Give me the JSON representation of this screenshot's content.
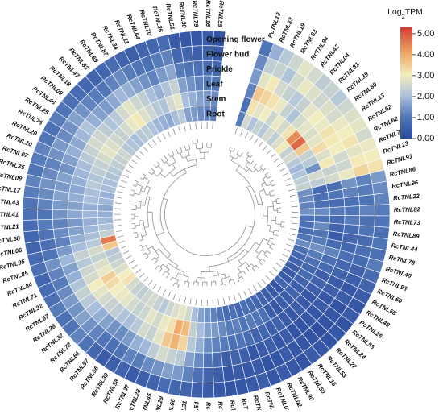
{
  "chart_data": {
    "type": "heatmap",
    "layout": "circular",
    "title": "",
    "tracks": [
      "Opening flower",
      "Flower bud",
      "Prickle",
      "Leaf",
      "Stem",
      "Root"
    ],
    "legend": {
      "title_prefix": "Log",
      "title_sub": "2",
      "title_suffix": "TPM",
      "ticks": [
        "5.00",
        "4.00",
        "3.00",
        "2.00",
        "1.00",
        "0.00"
      ],
      "range": [
        0,
        5.3
      ],
      "placement": "top-right",
      "colors": [
        "#2c4a9e",
        "#4f75b6",
        "#a9bfdc",
        "#f3eebe",
        "#eea35f",
        "#d13d34"
      ]
    },
    "genes": [
      "RcTNL12",
      "RcTNL33",
      "RcTNL19",
      "RcTNL63",
      "RcTNL94",
      "RcTNL42",
      "RcTNL04",
      "RcTNL81",
      "RcTNL39",
      "RcTNL80",
      "RcTNL13",
      "RcTNL52",
      "RcTNL62",
      "RcTNL74",
      "RcTNL23",
      "RcTNL91",
      "RcTNL86",
      "RcTNL96",
      "RcTNL22",
      "RcTNL82",
      "RcTNL73",
      "RcTNL89",
      "RcTNL44",
      "RcTNL78",
      "RcTNL40",
      "RcTNL93",
      "RcTNL60",
      "RcTNL65",
      "RcTNL48",
      "RcTNL26",
      "RcTNL55",
      "RcTNL24",
      "RcTNL27",
      "RcTNL53",
      "RcTNL15",
      "RcTNL50",
      "RcTNL90",
      "RcTNL02",
      "RcTNL01",
      "RcTNL77",
      "RcTNL14",
      "RcTNL75",
      "RcTNL05",
      "RcTNL49",
      "RcTNL03",
      "RcTNL54",
      "RcTNL31",
      "RcTNL66",
      "RcTNL29",
      "RcTNL45",
      "RcTNL28",
      "RcTNL37",
      "RcTNL58",
      "RcTNL30",
      "RcTNL56",
      "RcTNL57",
      "RcTNL61",
      "RcTNL72",
      "RcTNL32",
      "RcTNL38",
      "RcTNL67",
      "RcTNL92",
      "RcTNL71",
      "RcTNL84",
      "RcTNL85",
      "RcTNL95",
      "RcTNL06",
      "RcTNL68",
      "RcTNL21",
      "RcTNL41",
      "RcTNL43",
      "RcTNL17",
      "RcTNL08",
      "RcTNL35",
      "RcTNL07",
      "RcTNL10",
      "RcTNL20",
      "RcTNL76",
      "RcTNL25",
      "RcTNL46",
      "RcTNL09",
      "RcTNL18",
      "RcTNL47",
      "RcTNL83",
      "RcTNL69",
      "RcTNL87",
      "RcTNL34",
      "RcTNL11",
      "RcTNL64",
      "RcTNL70",
      "RcTNL36",
      "RcTNL51",
      "RcTNL30",
      "RcTNL79",
      "RcTNL16",
      "RcTNL59"
    ],
    "values": [
      [
        1.0,
        1.3,
        1.5,
        1.2,
        0.9,
        1.1
      ],
      [
        1.8,
        2.3,
        2.8,
        3.6,
        3.2,
        2.6
      ],
      [
        2.2,
        2.4,
        3.1,
        3.4,
        2.8,
        2.1
      ],
      [
        2.5,
        2.1,
        2.6,
        3.2,
        3.0,
        2.4
      ],
      [
        2.8,
        2.6,
        2.4,
        2.9,
        2.5,
        2.2
      ],
      [
        2.6,
        2.9,
        2.2,
        2.4,
        2.9,
        2.6
      ],
      [
        2.3,
        2.7,
        2.4,
        2.1,
        2.6,
        2.3
      ],
      [
        2.4,
        2.5,
        2.8,
        2.6,
        3.2,
        2.7
      ],
      [
        2.2,
        2.7,
        3.0,
        2.8,
        4.4,
        3.1
      ],
      [
        2.5,
        2.6,
        2.9,
        2.7,
        4.8,
        2.4
      ],
      [
        2.7,
        2.9,
        3.2,
        2.8,
        3.6,
        2.6
      ],
      [
        2.8,
        3.0,
        3.1,
        3.3,
        2.4,
        2.2
      ],
      [
        2.6,
        3.2,
        3.0,
        2.7,
        2.2,
        1.9
      ],
      [
        2.9,
        2.8,
        2.6,
        3.1,
        1.4,
        2.1
      ],
      [
        3.0,
        3.1,
        2.5,
        2.4,
        2.6,
        2.3
      ],
      [
        3.2,
        3.4,
        2.9,
        2.6,
        2.3,
        2.4
      ],
      [
        1.5,
        1.2,
        1.4,
        0.9,
        0.8,
        1.4
      ],
      [
        1.3,
        1.1,
        1.2,
        1.0,
        0.9,
        1.3
      ],
      [
        1.2,
        1.0,
        0.9,
        0.8,
        0.9,
        1.2
      ],
      [
        1.1,
        1.2,
        1.0,
        1.1,
        1.3,
        1.4
      ],
      [
        1.0,
        0.9,
        1.1,
        0.8,
        0.9,
        1.0
      ],
      [
        0.9,
        1.0,
        0.8,
        0.6,
        1.3,
        0.9
      ],
      [
        1.0,
        0.8,
        0.7,
        0.4,
        1.0,
        0.8
      ],
      [
        0.9,
        0.9,
        0.7,
        0.8,
        1.1,
        1.0
      ],
      [
        1.1,
        0.8,
        0.9,
        1.2,
        1.4,
        1.3
      ],
      [
        0.8,
        0.6,
        0.7,
        0.9,
        1.1,
        0.9
      ],
      [
        0.6,
        0.5,
        0.6,
        0.8,
        0.9,
        0.7
      ],
      [
        0.4,
        0.3,
        0.4,
        0.5,
        0.7,
        0.6
      ],
      [
        0.3,
        0.4,
        0.5,
        0.6,
        0.8,
        0.5
      ],
      [
        0.4,
        0.2,
        0.3,
        0.5,
        0.6,
        0.4
      ],
      [
        0.2,
        0.3,
        0.4,
        0.3,
        0.5,
        0.4
      ],
      [
        0.3,
        0.2,
        0.3,
        0.4,
        0.6,
        0.7
      ],
      [
        0.2,
        0.1,
        0.3,
        0.5,
        0.4,
        0.3
      ],
      [
        0.3,
        0.2,
        0.2,
        0.3,
        0.5,
        0.4
      ],
      [
        0.4,
        0.3,
        0.2,
        0.4,
        0.3,
        0.5
      ],
      [
        0.2,
        0.3,
        0.4,
        0.6,
        0.5,
        0.6
      ],
      [
        0.3,
        0.4,
        0.3,
        0.5,
        0.9,
        0.7
      ],
      [
        0.4,
        0.3,
        0.5,
        0.7,
        1.0,
        0.8
      ],
      [
        0.3,
        0.2,
        0.4,
        0.6,
        1.1,
        0.9
      ],
      [
        0.5,
        0.4,
        0.3,
        0.8,
        1.0,
        0.7
      ],
      [
        0.4,
        0.3,
        0.5,
        1.0,
        1.2,
        0.9
      ],
      [
        0.3,
        0.4,
        0.6,
        0.9,
        1.1,
        0.8
      ],
      [
        0.2,
        0.3,
        0.5,
        1.1,
        1.3,
        1.0
      ],
      [
        0.3,
        0.5,
        0.8,
        1.2,
        1.5,
        1.2
      ],
      [
        0.4,
        0.6,
        1.0,
        1.3,
        1.6,
        1.4
      ],
      [
        0.5,
        0.9,
        1.3,
        1.8,
        2.0,
        1.6
      ],
      [
        0.6,
        1.2,
        1.6,
        2.2,
        2.4,
        2.0
      ],
      [
        0.7,
        1.5,
        2.2,
        3.4,
        3.8,
        2.6
      ],
      [
        0.8,
        1.6,
        2.4,
        3.9,
        4.0,
        2.8
      ],
      [
        0.6,
        1.4,
        2.6,
        3.6,
        3.2,
        2.7
      ],
      [
        0.5,
        1.3,
        2.3,
        2.8,
        2.9,
        2.5
      ],
      [
        0.4,
        1.1,
        1.9,
        2.4,
        2.6,
        2.2
      ],
      [
        0.6,
        1.2,
        1.8,
        2.6,
        2.8,
        2.4
      ],
      [
        0.5,
        1.0,
        1.5,
        2.2,
        2.5,
        2.6
      ],
      [
        0.4,
        0.9,
        1.3,
        2.0,
        2.4,
        2.5
      ],
      [
        0.7,
        1.0,
        1.4,
        2.1,
        2.6,
        2.3
      ],
      [
        1.0,
        1.2,
        1.6,
        2.3,
        2.8,
        2.4
      ],
      [
        1.2,
        1.4,
        1.8,
        2.4,
        2.9,
        2.6
      ],
      [
        1.0,
        1.6,
        2.0,
        2.6,
        3.0,
        3.2
      ],
      [
        0.9,
        1.4,
        2.2,
        2.8,
        3.3,
        3.0
      ],
      [
        1.1,
        1.5,
        2.4,
        3.0,
        3.5,
        2.7
      ],
      [
        0.9,
        1.3,
        2.1,
        2.6,
        2.9,
        2.5
      ],
      [
        0.8,
        1.1,
        1.8,
        2.5,
        2.7,
        2.3
      ],
      [
        0.7,
        1.2,
        1.6,
        2.2,
        2.4,
        2.2
      ],
      [
        0.9,
        1.4,
        1.9,
        2.4,
        2.6,
        3.6
      ],
      [
        0.8,
        1.0,
        1.5,
        2.0,
        2.2,
        4.6
      ],
      [
        0.6,
        0.9,
        1.2,
        1.8,
        2.0,
        2.4
      ],
      [
        0.7,
        1.0,
        1.3,
        1.6,
        1.9,
        2.1
      ],
      [
        0.8,
        1.1,
        1.2,
        1.5,
        1.8,
        1.9
      ],
      [
        0.9,
        1.0,
        1.4,
        1.7,
        1.9,
        1.8
      ],
      [
        1.0,
        1.2,
        1.5,
        1.6,
        1.8,
        1.7
      ],
      [
        1.1,
        1.3,
        1.6,
        1.8,
        2.0,
        1.9
      ],
      [
        1.2,
        1.4,
        1.5,
        1.7,
        2.0,
        1.8
      ],
      [
        1.0,
        1.3,
        1.6,
        1.8,
        2.2,
        2.0
      ],
      [
        1.1,
        1.2,
        1.4,
        1.9,
        2.1,
        2.0
      ],
      [
        1.2,
        1.4,
        1.6,
        2.0,
        2.3,
        2.1
      ],
      [
        1.0,
        1.5,
        1.8,
        2.2,
        2.4,
        2.2
      ],
      [
        0.9,
        1.3,
        1.7,
        2.4,
        2.6,
        2.3
      ],
      [
        1.1,
        1.4,
        1.9,
        2.6,
        2.8,
        2.4
      ],
      [
        1.0,
        1.6,
        2.1,
        2.5,
        2.7,
        2.5
      ],
      [
        0.9,
        1.4,
        1.8,
        2.3,
        2.5,
        2.2
      ],
      [
        0.8,
        1.2,
        1.6,
        2.1,
        2.4,
        2.1
      ],
      [
        0.7,
        1.1,
        1.5,
        2.2,
        2.6,
        2.0
      ],
      [
        0.6,
        1.0,
        1.7,
        2.6,
        2.9,
        2.2
      ],
      [
        0.7,
        1.2,
        1.9,
        2.8,
        3.1,
        2.3
      ],
      [
        0.8,
        1.3,
        1.8,
        2.5,
        2.7,
        2.1
      ],
      [
        0.6,
        1.1,
        1.6,
        2.3,
        2.5,
        1.9
      ],
      [
        0.5,
        1.0,
        1.4,
        2.0,
        2.2,
        1.8
      ],
      [
        0.6,
        0.9,
        1.2,
        1.8,
        2.1,
        1.7
      ],
      [
        0.7,
        1.1,
        1.5,
        2.1,
        2.6,
        2.0
      ],
      [
        0.8,
        1.2,
        1.7,
        2.4,
        2.8,
        2.2
      ],
      [
        0.4,
        0.7,
        1.1,
        1.6,
        2.0,
        1.6
      ],
      [
        0.3,
        0.6,
        1.0,
        1.4,
        1.8,
        1.5
      ],
      [
        0.3,
        0.5,
        0.9,
        1.2,
        1.6,
        1.3
      ],
      [
        0.4,
        0.6,
        0.8,
        1.1,
        1.5,
        1.2
      ],
      [
        0.2,
        0.4,
        0.7,
        1.0,
        1.3,
        1.1
      ]
    ]
  }
}
